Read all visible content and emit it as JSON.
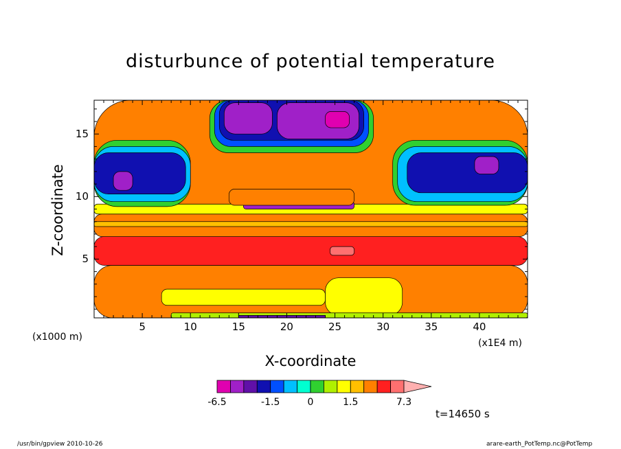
{
  "chart_data": {
    "type": "heatmap",
    "title": "disturbunce of potential temperature",
    "xlabel": "X-coordinate",
    "ylabel": "Z-coordinate",
    "x_unit": "(x1000 m)",
    "x_scale_note": "(x1E4 m)",
    "xlim": [
      0,
      45
    ],
    "ylim": [
      0.3,
      17.7
    ],
    "x_ticks": [
      5,
      10,
      15,
      20,
      25,
      30,
      35,
      40
    ],
    "x_tick_labels": [
      "5",
      "10",
      "15",
      "20",
      "25",
      "30",
      "35",
      "40"
    ],
    "y_ticks": [
      5,
      10,
      15
    ],
    "y_tick_labels": [
      "5",
      "10",
      "15"
    ],
    "colorbar": {
      "levels": [
        -6.5,
        -5.0,
        -3.5,
        -2.0,
        -1.5,
        -1.0,
        -0.5,
        0,
        0.5,
        1.0,
        1.5,
        2.0,
        3.5,
        5.0,
        7.3
      ],
      "colors": [
        "#e000b0",
        "#a020c8",
        "#6010a8",
        "#1010b0",
        "#0050ff",
        "#00c0ff",
        "#00ffd0",
        "#30d030",
        "#b0f000",
        "#ffff00",
        "#ffc000",
        "#ff8000",
        "#ff2020",
        "#ff7070",
        "#ffb0b0"
      ],
      "tick_labels": [
        "-6.5",
        "-1.5",
        "0",
        "1.5",
        "7.3"
      ],
      "extend": "max"
    },
    "regions": [
      {
        "x0": 0,
        "x1": 45,
        "y0": 0.3,
        "y1": 4.5,
        "value": 2.5
      },
      {
        "x0": 0,
        "x1": 45,
        "y0": 4.5,
        "y1": 6.8,
        "value": 4.0
      },
      {
        "x0": 0,
        "x1": 45,
        "y0": 6.8,
        "y1": 8.6,
        "value": 2.5
      },
      {
        "x0": 0,
        "x1": 45,
        "y0": 8.6,
        "y1": 9.4,
        "value": 1.2
      },
      {
        "x0": 0,
        "x1": 45,
        "y0": 9.4,
        "y1": 17.7,
        "value": 2.5
      },
      {
        "x0": 7,
        "x1": 24,
        "y0": 1.3,
        "y1": 2.6,
        "value": 1.2
      },
      {
        "x0": 24,
        "x1": 32,
        "y0": 0.5,
        "y1": 3.5,
        "value": 1.2
      },
      {
        "x0": 24.5,
        "x1": 27,
        "y0": 5.3,
        "y1": 6.0,
        "value": 6.0
      },
      {
        "x0": 0,
        "x1": 10,
        "y0": 9.2,
        "y1": 14.5,
        "value": 0.2
      },
      {
        "x0": 0,
        "x1": 10,
        "y0": 9.6,
        "y1": 14.0,
        "value": -0.7
      },
      {
        "x0": 0,
        "x1": 9.5,
        "y0": 10.2,
        "y1": 13.5,
        "value": -1.7
      },
      {
        "x0": 2,
        "x1": 4,
        "y0": 10.5,
        "y1": 12.0,
        "value": -4.0
      },
      {
        "x0": 31,
        "x1": 45,
        "y0": 9.3,
        "y1": 14.5,
        "value": 0.2
      },
      {
        "x0": 31.5,
        "x1": 45,
        "y0": 9.6,
        "y1": 14.0,
        "value": -0.7
      },
      {
        "x0": 32.5,
        "x1": 45,
        "y0": 10.3,
        "y1": 13.5,
        "value": -1.7
      },
      {
        "x0": 39.5,
        "x1": 42,
        "y0": 11.8,
        "y1": 13.2,
        "value": -4.0
      },
      {
        "x0": 12,
        "x1": 29,
        "y0": 13.5,
        "y1": 17.7,
        "value": 0.2
      },
      {
        "x0": 12.5,
        "x1": 28.5,
        "y0": 14.0,
        "y1": 17.7,
        "value": -1.2
      },
      {
        "x0": 13,
        "x1": 28,
        "y0": 14.5,
        "y1": 17.7,
        "value": -1.7
      },
      {
        "x0": 13.5,
        "x1": 18.5,
        "y0": 15.0,
        "y1": 17.5,
        "value": -4.0
      },
      {
        "x0": 19,
        "x1": 27.5,
        "y0": 14.6,
        "y1": 17.5,
        "value": -4.0
      },
      {
        "x0": 24,
        "x1": 26.5,
        "y0": 15.5,
        "y1": 16.8,
        "value": -6.0
      },
      {
        "x0": 15.5,
        "x1": 27,
        "y0": 9.0,
        "y1": 9.6,
        "value": -5.0
      },
      {
        "x0": 14,
        "x1": 27,
        "y0": 9.3,
        "y1": 10.6,
        "value": 2.8
      },
      {
        "x0": 8,
        "x1": 45,
        "y0": 0.3,
        "y1": 0.7,
        "value": 0.7
      },
      {
        "x0": 15,
        "x1": 24,
        "y0": 0.3,
        "y1": 0.5,
        "value": -3.5
      },
      {
        "x0": 0,
        "x1": 45,
        "y0": 7.6,
        "y1": 8.0,
        "value": 1.6
      }
    ]
  },
  "time_label": "t=14650 s",
  "footer_left": "/usr/bin/gpview   2010-10-26",
  "footer_right": "arare-earth_PotTemp.nc@PotTemp"
}
